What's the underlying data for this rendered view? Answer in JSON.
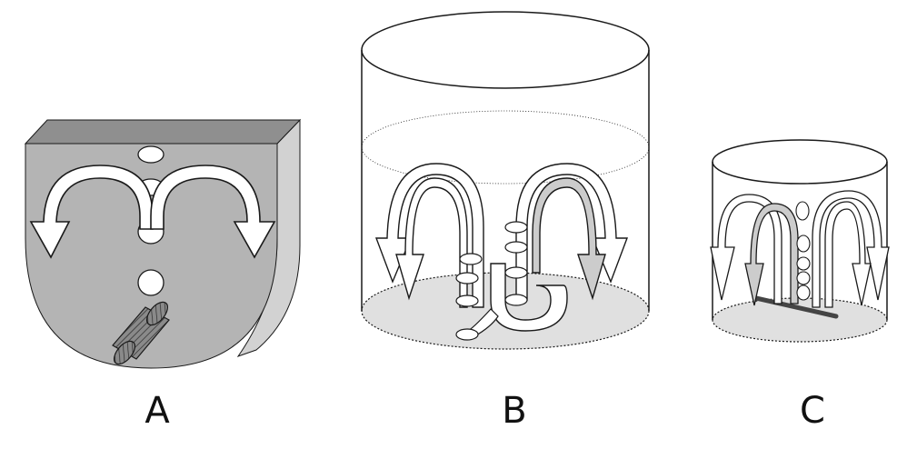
{
  "figure": {
    "panels": [
      {
        "label": "A"
      },
      {
        "label": "B"
      },
      {
        "label": "C"
      }
    ],
    "colors": {
      "outline": "#1a1a1a",
      "vessel_face": "#b4b4b4",
      "vessel_top": "#8f8f8f",
      "vessel_side": "#d2d2d2",
      "liquid_base": "#e0e0e0",
      "baffle_dark": "#444444",
      "arrow_fill": "#ffffff",
      "background": "#ffffff"
    }
  }
}
